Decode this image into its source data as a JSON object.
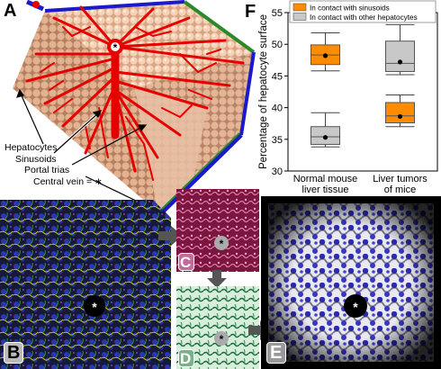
{
  "panels": {
    "a": {
      "letter": "A"
    },
    "b": {
      "letter": "B"
    },
    "c": {
      "letter": "C"
    },
    "d": {
      "letter": "D"
    },
    "e": {
      "letter": "E"
    },
    "f": {
      "letter": "F"
    }
  },
  "panel_a_labels": {
    "hepatocytes": "Hepatocytes",
    "sinusoids": "Sinusoids",
    "portal_trias": "Portal trias",
    "central_vein": "Central vein = ∗"
  },
  "central_vein_marker": "*",
  "colors": {
    "hepatocyte": "#f2c9a8",
    "sinusoid": "#e60000",
    "portal_blue": "#1a1acc",
    "portal_green": "#2a8a2a",
    "sinusoid_box": "#ff8c00",
    "other_box": "#c8c8c8",
    "section_bg": "#1a1a40",
    "panel_c_bg": "#8a1a4a",
    "panel_d_bg": "#1a6a3a",
    "panel_e_nuclei": "#2a2ab0"
  },
  "chart_data": {
    "type": "box",
    "ylabel": "Percentage of hepatocyte surface",
    "ylim": [
      30,
      55
    ],
    "yticks": [
      30,
      35,
      40,
      45,
      50,
      55
    ],
    "categories": [
      "Normal mouse\nliver tissue",
      "Liver tumors\nof mice"
    ],
    "series": [
      {
        "name": "In contact with sinusoids",
        "boxes": [
          {
            "whisker_low": 45.8,
            "q1": 46.8,
            "median": 48.3,
            "q3": 49.9,
            "whisker_high": 51.8,
            "mean": 48.2
          },
          {
            "whisker_low": 37.0,
            "q1": 37.6,
            "median": 38.7,
            "q3": 40.8,
            "whisker_high": 42.0,
            "mean": 38.6
          }
        ]
      },
      {
        "name": "In contact with other hepatocytes",
        "boxes": [
          {
            "whisker_low": 33.8,
            "q1": 34.2,
            "median": 35.4,
            "q3": 37.0,
            "whisker_high": 39.2,
            "mean": 35.3
          },
          {
            "whisker_low": 45.2,
            "q1": 45.7,
            "median": 47.0,
            "q3": 50.5,
            "whisker_high": 53.1,
            "mean": 47.2
          }
        ]
      }
    ],
    "legend_position": "top"
  }
}
